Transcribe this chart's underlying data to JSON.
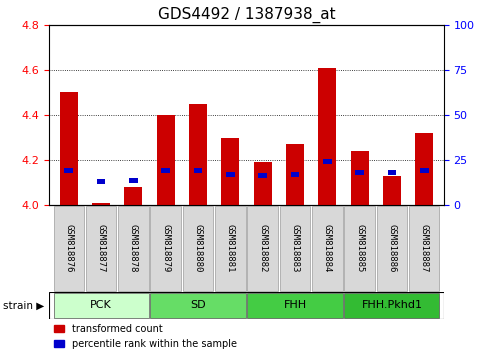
{
  "title": "GDS4492 / 1387938_at",
  "samples": [
    "GSM818876",
    "GSM818877",
    "GSM818878",
    "GSM818879",
    "GSM818880",
    "GSM818881",
    "GSM818882",
    "GSM818883",
    "GSM818884",
    "GSM818885",
    "GSM818886",
    "GSM818887"
  ],
  "red_values": [
    4.5,
    4.01,
    4.08,
    4.4,
    4.45,
    4.3,
    4.19,
    4.27,
    4.61,
    4.24,
    4.13,
    4.32
  ],
  "blue_values": [
    4.155,
    4.105,
    4.11,
    4.155,
    4.155,
    4.135,
    4.13,
    4.135,
    4.195,
    4.145,
    4.145,
    4.155
  ],
  "ylim_left": [
    4.0,
    4.8
  ],
  "ylim_right": [
    0,
    100
  ],
  "yticks_left": [
    4.0,
    4.2,
    4.4,
    4.6,
    4.8
  ],
  "yticks_right": [
    0,
    25,
    50,
    75,
    100
  ],
  "groups": [
    {
      "label": "PCK",
      "start": 0,
      "end": 3,
      "color": "#ccffcc"
    },
    {
      "label": "SD",
      "start": 3,
      "end": 6,
      "color": "#66dd66"
    },
    {
      "label": "FHH",
      "start": 6,
      "end": 9,
      "color": "#44cc44"
    },
    {
      "label": "FHH.Pkhd1",
      "start": 9,
      "end": 12,
      "color": "#33bb33"
    }
  ],
  "bar_width": 0.55,
  "bar_color_red": "#cc0000",
  "bar_color_blue": "#0000cc",
  "base": 4.0,
  "legend_items": [
    {
      "label": "transformed count",
      "color": "#cc0000"
    },
    {
      "label": "percentile rank within the sample",
      "color": "#0000cc"
    }
  ],
  "group_label_fontsize": 8,
  "strain_label": "strain ▶",
  "title_fontsize": 11,
  "tick_fontsize": 8,
  "sample_fontsize": 6.5,
  "xtick_bg": "#d8d8d8",
  "xtick_edge": "#aaaaaa"
}
